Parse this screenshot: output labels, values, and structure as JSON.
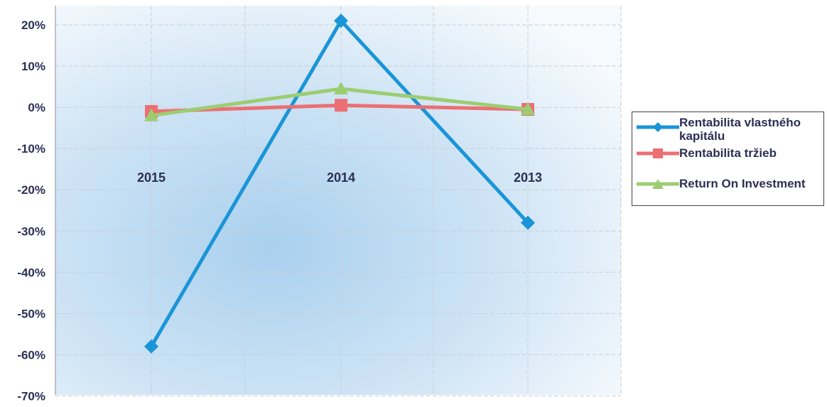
{
  "chart_data": {
    "type": "line",
    "categories": [
      "2015",
      "2014",
      "2013"
    ],
    "series": [
      {
        "name": "Rentabilita vlastného kapitálu",
        "color": "#1a95d8",
        "marker": "diamond",
        "values": [
          -58,
          21,
          -28
        ]
      },
      {
        "name": "Rentabilita tržieb",
        "color": "#ec6f73",
        "marker": "square",
        "values": [
          -1,
          0.5,
          -0.5
        ]
      },
      {
        "name": "Return On Investment",
        "color": "#9ccd72",
        "marker": "triangle",
        "values": [
          -2,
          4.5,
          -0.5
        ]
      }
    ],
    "ylim": [
      -70,
      20
    ],
    "yticks": [
      20,
      10,
      0,
      -10,
      -20,
      -30,
      -40,
      -50,
      -60,
      -70
    ],
    "ytick_labels": [
      "20%",
      "10%",
      "0%",
      "-10%",
      "-20%",
      "-30%",
      "-40%",
      "-50%",
      "-60%",
      "-70%"
    ],
    "grid": true,
    "legend_position": "right",
    "title": "",
    "xlabel": "",
    "ylabel": ""
  }
}
